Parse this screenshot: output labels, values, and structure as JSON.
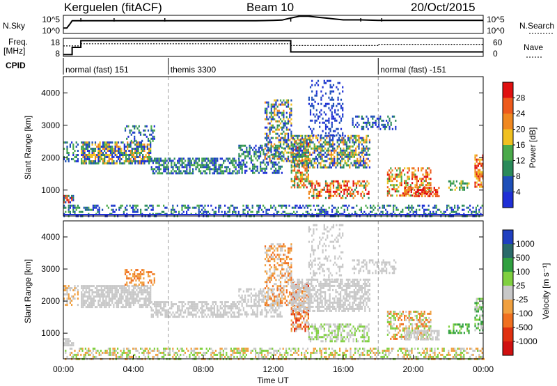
{
  "header": {
    "site": "Kerguelen (fitACF)",
    "beam": "Beam 10",
    "date": "20/Oct/2015"
  },
  "colors": {
    "power_scale": [
      "#1f2fd6",
      "#1e4fb8",
      "#2a8a5a",
      "#4aaa4a",
      "#f0c020",
      "#f08820",
      "#ee5a1c",
      "#e01010"
    ],
    "velocity_scale": [
      "#2040c0",
      "#2a6a6a",
      "#30a040",
      "#80d040",
      "#c8c8c8",
      "#f0a040",
      "#f07020",
      "#e03010",
      "#d01010"
    ]
  },
  "chart_data": [
    {
      "type": "line",
      "panel": "noise",
      "labels": {
        "left": "N.Sky",
        "right": "N.Search"
      },
      "yticks_left": [
        "10^5",
        "10^0"
      ],
      "yticks_right": [
        "10^5",
        "10^0"
      ],
      "series": [
        {
          "name": "N.Sky",
          "x_hours": [
            0,
            0.2,
            0.4,
            0.5,
            1,
            2,
            3,
            4,
            5,
            6,
            7,
            8,
            9,
            10,
            11,
            12,
            12.5,
            13,
            13.5,
            14,
            14.5,
            15,
            15.5,
            16,
            17,
            18,
            19,
            20,
            21,
            22,
            23,
            24
          ],
          "y_frac": [
            0.3,
            0.3,
            0.55,
            0.7,
            0.7,
            0.7,
            0.7,
            0.7,
            0.7,
            0.7,
            0.7,
            0.7,
            0.7,
            0.7,
            0.7,
            0.72,
            0.74,
            0.85,
            0.95,
            0.95,
            0.9,
            0.85,
            0.8,
            0.75,
            0.75,
            0.72,
            0.72,
            0.72,
            0.72,
            0.72,
            0.72,
            0.72
          ]
        }
      ]
    },
    {
      "type": "line",
      "panel": "frequency",
      "labels": {
        "left_line1": "Freq.",
        "left_line2": "[MHz]",
        "right": "Nave"
      },
      "yticks_left": [
        "18",
        "8"
      ],
      "yticks_right": [
        "60",
        "0"
      ],
      "series": [
        {
          "name": "Freq",
          "x_hours": [
            0,
            0.5,
            0.5,
            1.0,
            1.0,
            13.0,
            13.0,
            24
          ],
          "y_frac": [
            0.9,
            0.9,
            0.5,
            0.5,
            0.13,
            0.13,
            0.75,
            0.75
          ]
        },
        {
          "name": "Nave",
          "x_hours": [
            0,
            1.0,
            1.0,
            13.0,
            13.0,
            18.0,
            18.0,
            24
          ],
          "y_frac": [
            0.42,
            0.42,
            0.3,
            0.3,
            0.4,
            0.4,
            0.33,
            0.33
          ]
        }
      ]
    },
    {
      "type": "table",
      "panel": "cpid",
      "label": "CPID",
      "segments": [
        {
          "start_hour": 0,
          "end_hour": 6,
          "label": "normal (fast) 151"
        },
        {
          "start_hour": 6,
          "end_hour": 18,
          "label": "themis 3300"
        },
        {
          "start_hour": 18,
          "end_hour": 24,
          "label": "normal (fast) -151"
        }
      ]
    },
    {
      "type": "heatmap",
      "panel": "power",
      "ylabel": "Slant Range [km]",
      "xlim": [
        0,
        24
      ],
      "ylim": [
        200,
        4500
      ],
      "yticks": [
        1000,
        2000,
        3000,
        4000
      ],
      "colorbar": {
        "label": "Power [dB]",
        "ticks": [
          "4",
          "8",
          "12",
          "16",
          "20",
          "24",
          "28"
        ]
      },
      "bands": [
        {
          "x": [
            0,
            0.6
          ],
          "range": [
            650,
            850
          ],
          "density": 0.8,
          "colors": [
            0,
            1,
            2,
            6,
            7
          ]
        },
        {
          "x": [
            0,
            24
          ],
          "range": [
            200,
            550
          ],
          "density": 0.4,
          "colors": [
            0,
            1,
            2,
            3
          ]
        },
        {
          "x": [
            0,
            0.8
          ],
          "range": [
            1900,
            2500
          ],
          "density": 0.5,
          "colors": [
            0,
            1,
            2,
            3
          ]
        },
        {
          "x": [
            1,
            5
          ],
          "range": [
            1800,
            2500
          ],
          "density": 0.7,
          "colors": [
            0,
            1,
            2,
            3,
            4,
            5
          ]
        },
        {
          "x": [
            3.5,
            5.2
          ],
          "range": [
            2500,
            3000
          ],
          "density": 0.4,
          "colors": [
            0,
            1,
            2,
            3
          ]
        },
        {
          "x": [
            5,
            10
          ],
          "range": [
            1500,
            2000
          ],
          "density": 0.6,
          "colors": [
            0,
            1,
            2,
            3
          ]
        },
        {
          "x": [
            10,
            12.5
          ],
          "range": [
            1500,
            2400
          ],
          "density": 0.5,
          "colors": [
            0,
            1,
            2,
            3
          ]
        },
        {
          "x": [
            11.5,
            13
          ],
          "range": [
            1900,
            3800
          ],
          "density": 0.5,
          "colors": [
            0,
            1,
            2,
            3,
            4,
            5
          ]
        },
        {
          "x": [
            13,
            14
          ],
          "range": [
            1100,
            2600
          ],
          "density": 0.6,
          "colors": [
            2,
            3,
            4,
            5,
            6,
            7
          ]
        },
        {
          "x": [
            13,
            17.5
          ],
          "range": [
            1700,
            2700
          ],
          "density": 0.6,
          "colors": [
            0,
            1,
            2,
            3,
            4,
            5
          ]
        },
        {
          "x": [
            14,
            16
          ],
          "range": [
            2700,
            4400
          ],
          "density": 0.25,
          "colors": [
            0,
            1
          ]
        },
        {
          "x": [
            14,
            17.5
          ],
          "range": [
            750,
            1300
          ],
          "density": 0.5,
          "colors": [
            2,
            4,
            5,
            6,
            7
          ]
        },
        {
          "x": [
            16.5,
            19
          ],
          "range": [
            2900,
            3300
          ],
          "density": 0.4,
          "colors": [
            0,
            1,
            2
          ]
        },
        {
          "x": [
            18.5,
            21
          ],
          "range": [
            800,
            1700
          ],
          "density": 0.5,
          "colors": [
            3,
            4,
            5,
            6,
            7
          ]
        },
        {
          "x": [
            19.5,
            21.5
          ],
          "range": [
            800,
            1100
          ],
          "density": 0.6,
          "colors": [
            5,
            6,
            7
          ]
        },
        {
          "x": [
            22,
            23.2
          ],
          "range": [
            1000,
            1300
          ],
          "density": 0.5,
          "colors": [
            2,
            3,
            4
          ]
        },
        {
          "x": [
            23.5,
            24
          ],
          "range": [
            1100,
            2100
          ],
          "density": 0.6,
          "colors": [
            4,
            5,
            6,
            7
          ]
        }
      ]
    },
    {
      "type": "heatmap",
      "panel": "velocity",
      "xlabel": "Time UT",
      "ylabel": "Slant Range [km]",
      "xlim": [
        0,
        24
      ],
      "ylim": [
        200,
        4500
      ],
      "xticks": [
        "00:00",
        "04:00",
        "08:00",
        "12:00",
        "16:00",
        "20:00",
        "00:00"
      ],
      "yticks": [
        1000,
        2000,
        3000,
        4000
      ],
      "colorbar": {
        "label": "Velocity [m s⁻¹]",
        "ticks": [
          "1000",
          "500",
          "100",
          "25",
          "-25",
          "-100",
          "-500",
          "-1000"
        ]
      },
      "bands": [
        {
          "x": [
            0,
            0.6
          ],
          "range": [
            650,
            850
          ],
          "density": 0.7,
          "colors": [
            4
          ]
        },
        {
          "x": [
            0,
            24
          ],
          "range": [
            200,
            550
          ],
          "density": 0.45,
          "colors": [
            3,
            4,
            5
          ]
        },
        {
          "x": [
            0,
            0.8
          ],
          "range": [
            1900,
            2500
          ],
          "density": 0.5,
          "colors": [
            4,
            5
          ]
        },
        {
          "x": [
            1,
            5
          ],
          "range": [
            1800,
            2500
          ],
          "density": 0.75,
          "colors": [
            4
          ]
        },
        {
          "x": [
            3.5,
            5.2
          ],
          "range": [
            2500,
            3000
          ],
          "density": 0.4,
          "colors": [
            5,
            6
          ]
        },
        {
          "x": [
            5,
            10
          ],
          "range": [
            1500,
            2000
          ],
          "density": 0.6,
          "colors": [
            4
          ]
        },
        {
          "x": [
            10,
            12.5
          ],
          "range": [
            1500,
            2400
          ],
          "density": 0.5,
          "colors": [
            4
          ]
        },
        {
          "x": [
            11.5,
            13
          ],
          "range": [
            1900,
            3800
          ],
          "density": 0.5,
          "colors": [
            4,
            5,
            6
          ]
        },
        {
          "x": [
            13,
            14
          ],
          "range": [
            1100,
            2600
          ],
          "density": 0.6,
          "colors": [
            4,
            5,
            6,
            7
          ]
        },
        {
          "x": [
            13,
            17.5
          ],
          "range": [
            1700,
            2700
          ],
          "density": 0.6,
          "colors": [
            4
          ]
        },
        {
          "x": [
            14,
            16
          ],
          "range": [
            2700,
            4400
          ],
          "density": 0.25,
          "colors": [
            4
          ]
        },
        {
          "x": [
            14,
            17.5
          ],
          "range": [
            750,
            1300
          ],
          "density": 0.5,
          "colors": [
            4,
            3
          ]
        },
        {
          "x": [
            16.5,
            19
          ],
          "range": [
            2900,
            3300
          ],
          "density": 0.4,
          "colors": [
            4
          ]
        },
        {
          "x": [
            18.5,
            21
          ],
          "range": [
            800,
            1700
          ],
          "density": 0.5,
          "colors": [
            5,
            6,
            3,
            4
          ]
        },
        {
          "x": [
            19.5,
            21.5
          ],
          "range": [
            800,
            1100
          ],
          "density": 0.6,
          "colors": [
            4
          ]
        },
        {
          "x": [
            22,
            23.2
          ],
          "range": [
            1000,
            1300
          ],
          "density": 0.5,
          "colors": [
            2,
            3
          ]
        },
        {
          "x": [
            23.5,
            24
          ],
          "range": [
            1100,
            2100
          ],
          "density": 0.6,
          "colors": [
            2,
            3,
            4
          ]
        }
      ]
    }
  ]
}
